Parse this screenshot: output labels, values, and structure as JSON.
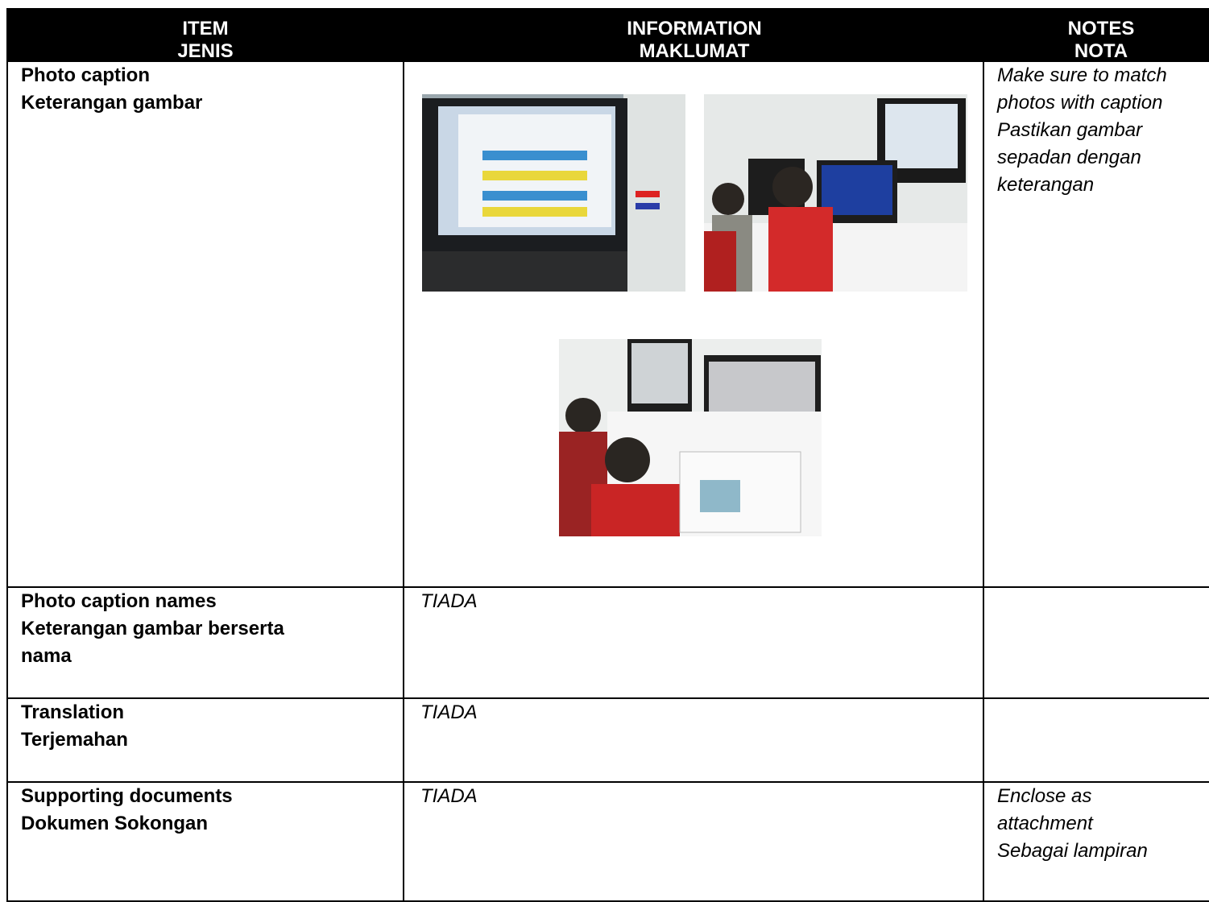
{
  "table": {
    "header": [
      [
        "ITEM",
        "JENIS"
      ],
      [
        "INFORMATION",
        "MAKLUMAT"
      ],
      [
        "NOTES",
        "NOTA"
      ]
    ],
    "rows": [
      {
        "item": [
          "Photo caption",
          "Keterangan gambar"
        ],
        "info": [],
        "notes": [
          "Make sure to match",
          "photos with caption",
          "Pastikan gambar",
          "sepadan dengan",
          "keterangan"
        ]
      },
      {
        "item": [
          "Photo caption names",
          "Keterangan gambar berserta",
          "nama"
        ],
        "info": [
          "TIADA"
        ],
        "notes": []
      },
      {
        "item": [
          "Translation",
          "Terjemahan"
        ],
        "info": [
          "TIADA"
        ],
        "notes": []
      },
      {
        "item": [
          "Supporting documents",
          "Dokumen Sokongan"
        ],
        "info": [
          "TIADA"
        ],
        "notes": [
          "Enclose as",
          "attachment",
          "Sebagai lampiran"
        ]
      }
    ]
  }
}
